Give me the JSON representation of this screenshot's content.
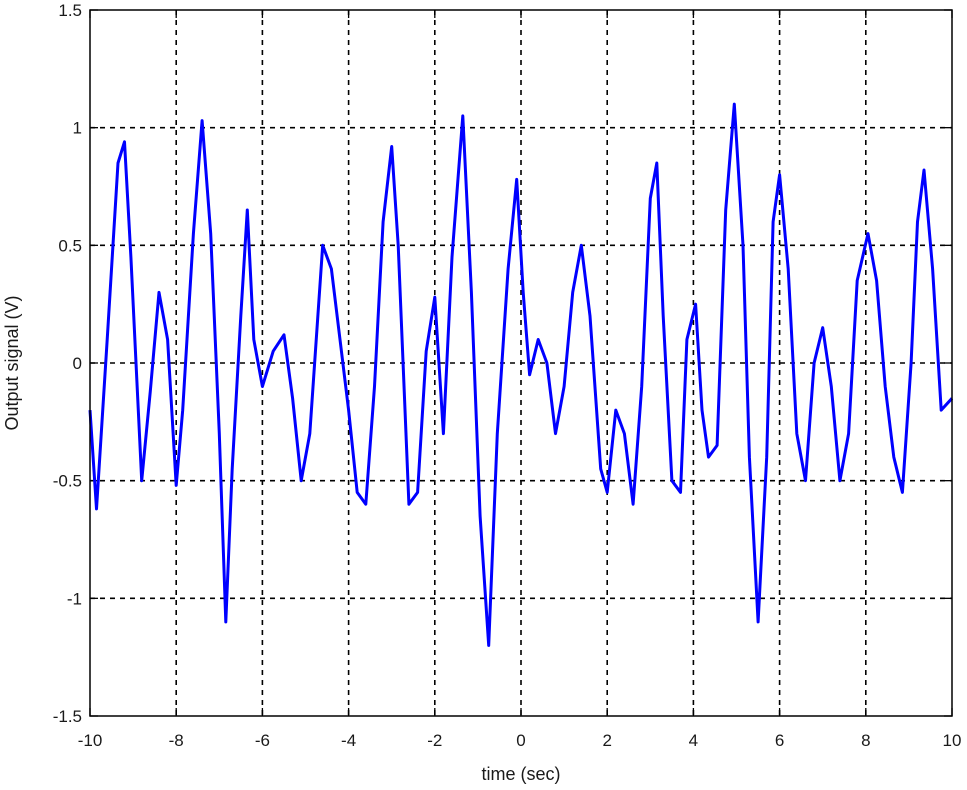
{
  "chart_data": {
    "type": "line",
    "title": "",
    "xlabel": "time (sec)",
    "ylabel": "Output signal (V)",
    "xlim": [
      -10,
      10
    ],
    "ylim": [
      -1.5,
      1.5
    ],
    "xticks": [
      -10,
      -8,
      -6,
      -4,
      -2,
      0,
      2,
      4,
      6,
      8,
      10
    ],
    "yticks": [
      -1.5,
      -1,
      -0.5,
      0,
      0.5,
      1,
      1.5
    ],
    "xtick_labels": [
      "-10",
      "-8",
      "-6",
      "-4",
      "-2",
      "0",
      "2",
      "4",
      "6",
      "8",
      "10"
    ],
    "ytick_labels": [
      "-1.5",
      "-1",
      "-0.5",
      "0",
      "0.5",
      "1",
      "1.5"
    ],
    "grid": true,
    "grid_style": "dashed",
    "line_color": "#0000ff",
    "series": [
      {
        "x": [
          -10,
          -9.85,
          -9.6,
          -9.35,
          -9.2,
          -9.05,
          -8.8,
          -8.6,
          -8.4,
          -8.2,
          -8.0,
          -7.85,
          -7.6,
          -7.4,
          -7.2,
          -7.0,
          -6.85,
          -6.7,
          -6.5,
          -6.35,
          -6.2,
          -6.0,
          -5.75,
          -5.5,
          -5.3,
          -5.1,
          -4.9,
          -4.6,
          -4.4,
          -4.2,
          -4.0,
          -3.8,
          -3.6,
          -3.4,
          -3.2,
          -3.0,
          -2.85,
          -2.6,
          -2.4,
          -2.2,
          -2.0,
          -1.8,
          -1.6,
          -1.35,
          -1.15,
          -0.95,
          -0.75,
          -0.55,
          -0.3,
          -0.1,
          0.05,
          0.2,
          0.4,
          0.6,
          0.8,
          1.0,
          1.2,
          1.4,
          1.6,
          1.85,
          2.0,
          2.2,
          2.4,
          2.6,
          2.8,
          3.0,
          3.15,
          3.3,
          3.5,
          3.7,
          3.85,
          4.05,
          4.2,
          4.35,
          4.55,
          4.75,
          4.95,
          5.15,
          5.3,
          5.5,
          5.7,
          5.85,
          6.0,
          6.2,
          6.4,
          6.6,
          6.8,
          7.0,
          7.2,
          7.4,
          7.6,
          7.8,
          8.05,
          8.25,
          8.45,
          8.65,
          8.85,
          9.05,
          9.2,
          9.35,
          9.55,
          9.75,
          10.0
        ],
        "y": [
          -0.2,
          -0.62,
          0.1,
          0.85,
          0.94,
          0.45,
          -0.5,
          -0.12,
          0.3,
          0.1,
          -0.52,
          -0.2,
          0.55,
          1.03,
          0.55,
          -0.3,
          -1.1,
          -0.45,
          0.2,
          0.65,
          0.1,
          -0.1,
          0.05,
          0.12,
          -0.15,
          -0.5,
          -0.3,
          0.5,
          0.4,
          0.1,
          -0.2,
          -0.55,
          -0.6,
          -0.1,
          0.6,
          0.92,
          0.5,
          -0.6,
          -0.55,
          0.05,
          0.28,
          -0.3,
          0.45,
          1.05,
          0.3,
          -0.65,
          -1.2,
          -0.3,
          0.4,
          0.78,
          0.3,
          -0.05,
          0.1,
          0.0,
          -0.3,
          -0.1,
          0.3,
          0.5,
          0.2,
          -0.45,
          -0.55,
          -0.2,
          -0.3,
          -0.6,
          -0.1,
          0.7,
          0.85,
          0.2,
          -0.5,
          -0.55,
          0.1,
          0.25,
          -0.2,
          -0.4,
          -0.35,
          0.65,
          1.1,
          0.5,
          -0.4,
          -1.1,
          -0.4,
          0.6,
          0.8,
          0.4,
          -0.3,
          -0.5,
          0.0,
          0.15,
          -0.1,
          -0.5,
          -0.3,
          0.35,
          0.55,
          0.35,
          -0.1,
          -0.4,
          -0.55,
          0.0,
          0.6,
          0.82,
          0.4,
          -0.2,
          -0.15
        ]
      }
    ]
  }
}
